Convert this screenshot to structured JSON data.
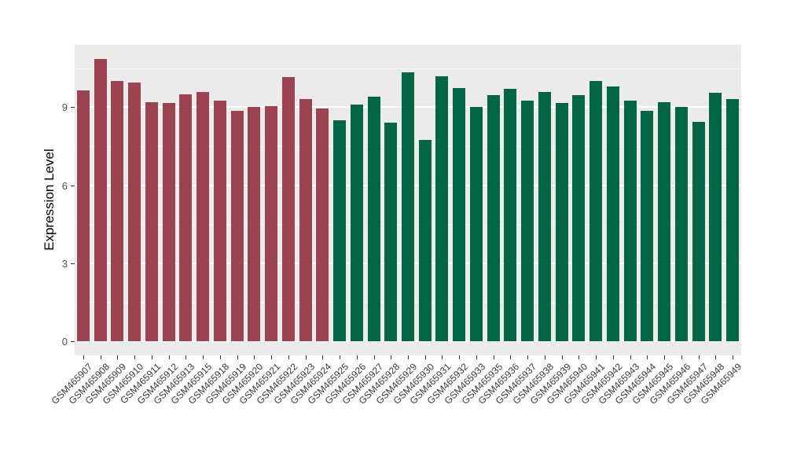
{
  "axes": {
    "y_title": "Expression Level",
    "y_tick_labels": [
      "0",
      "3",
      "6",
      "9"
    ]
  },
  "chart_data": {
    "type": "bar",
    "title": "",
    "xlabel": "",
    "ylabel": "Expression Level",
    "ylim": [
      0,
      11.4
    ],
    "yticks": [
      0,
      3,
      6,
      9
    ],
    "minor_gridlines": [
      1.5,
      4.5,
      7.5,
      10.5
    ],
    "grid": true,
    "legend": false,
    "panel_background": "#EBEBEB",
    "gridline_color": "#FFFFFF",
    "categories": [
      "GSM465907",
      "GSM465908",
      "GSM465909",
      "GSM465910",
      "GSM465911",
      "GSM465912",
      "GSM465913",
      "GSM465915",
      "GSM465918",
      "GSM465919",
      "GSM465920",
      "GSM465921",
      "GSM465922",
      "GSM465923",
      "GSM465924",
      "GSM465925",
      "GSM465926",
      "GSM465927",
      "GSM465928",
      "GSM465929",
      "GSM465930",
      "GSM465931",
      "GSM465932",
      "GSM465933",
      "GSM465935",
      "GSM465936",
      "GSM465937",
      "GSM465938",
      "GSM465939",
      "GSM465940",
      "GSM465941",
      "GSM465942",
      "GSM465943",
      "GSM465944",
      "GSM465945",
      "GSM465946",
      "GSM465947",
      "GSM465948",
      "GSM465949"
    ],
    "values": [
      9.65,
      10.85,
      10.0,
      9.95,
      9.2,
      9.15,
      9.5,
      9.6,
      9.25,
      8.85,
      9.0,
      9.05,
      10.15,
      9.3,
      8.95,
      8.5,
      9.1,
      9.4,
      8.4,
      10.35,
      7.75,
      10.2,
      9.75,
      9.0,
      9.45,
      9.7,
      9.25,
      9.6,
      9.15,
      9.45,
      10.0,
      9.8,
      9.25,
      8.85,
      9.2,
      9.0,
      8.45,
      9.55,
      9.3
    ],
    "series": [
      {
        "name": "GSM465907-GSM465924",
        "color": "#9C4351",
        "count": 15
      },
      {
        "name": "GSM465925-GSM465949",
        "color": "#006646",
        "count": 24
      }
    ]
  }
}
